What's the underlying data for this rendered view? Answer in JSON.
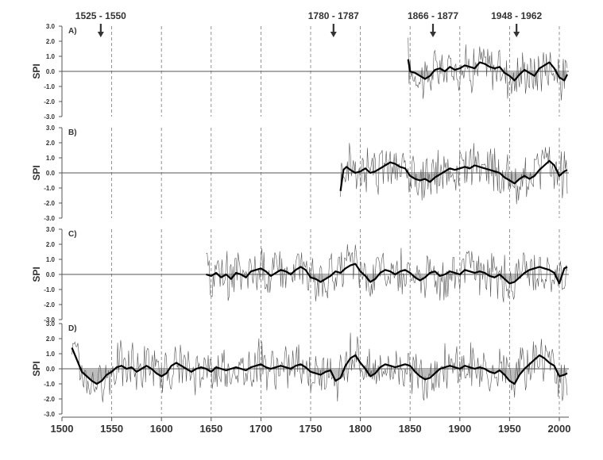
{
  "chart_data": {
    "type": "line",
    "x_axis": {
      "range": [
        1500,
        2010
      ],
      "ticks": [
        1500,
        1550,
        1600,
        1650,
        1700,
        1750,
        1800,
        1850,
        1900,
        1950,
        2000
      ]
    },
    "y_axis": {
      "label": "SPI",
      "range": [
        -3.0,
        3.0
      ],
      "ticks": [
        "3.0",
        "2.0",
        "1.0",
        "0.0",
        "-1.0",
        "-2.0",
        "-3.0"
      ]
    },
    "gridlines": "vertical dashed at 1550-2000",
    "events": [
      {
        "label": "1525 - 1550",
        "year": 1539
      },
      {
        "label": "1780 - 1787",
        "year": 1773
      },
      {
        "label": "1866 - 1877",
        "year": 1873
      },
      {
        "label": "1948 - 1962",
        "year": 1957
      }
    ],
    "panels": [
      {
        "label": "A)",
        "start": 1848,
        "end": 2008,
        "smoothed": [
          [
            1848,
            0.8
          ],
          [
            1850,
            0.0
          ],
          [
            1855,
            -0.1
          ],
          [
            1860,
            -0.3
          ],
          [
            1865,
            -0.5
          ],
          [
            1870,
            -0.3
          ],
          [
            1875,
            0.1
          ],
          [
            1880,
            0.2
          ],
          [
            1885,
            0.0
          ],
          [
            1890,
            0.3
          ],
          [
            1895,
            0.1
          ],
          [
            1900,
            0.2
          ],
          [
            1905,
            0.4
          ],
          [
            1910,
            0.3
          ],
          [
            1915,
            0.2
          ],
          [
            1920,
            0.6
          ],
          [
            1925,
            0.5
          ],
          [
            1930,
            0.3
          ],
          [
            1935,
            0.2
          ],
          [
            1940,
            0.3
          ],
          [
            1945,
            -0.1
          ],
          [
            1950,
            -0.3
          ],
          [
            1955,
            -0.6
          ],
          [
            1960,
            -0.2
          ],
          [
            1965,
            0.1
          ],
          [
            1970,
            -0.1
          ],
          [
            1975,
            -0.3
          ],
          [
            1980,
            0.2
          ],
          [
            1985,
            0.4
          ],
          [
            1990,
            0.6
          ],
          [
            1995,
            0.2
          ],
          [
            2000,
            -0.4
          ],
          [
            2005,
            -0.6
          ],
          [
            2008,
            -0.2
          ]
        ]
      },
      {
        "label": "B)",
        "start": 1780,
        "end": 2008,
        "smoothed": [
          [
            1780,
            -1.2
          ],
          [
            1783,
            0.2
          ],
          [
            1786,
            0.4
          ],
          [
            1790,
            0.2
          ],
          [
            1795,
            0.0
          ],
          [
            1800,
            0.1
          ],
          [
            1805,
            0.3
          ],
          [
            1810,
            0.0
          ],
          [
            1815,
            0.1
          ],
          [
            1820,
            0.3
          ],
          [
            1825,
            0.5
          ],
          [
            1830,
            0.7
          ],
          [
            1835,
            0.6
          ],
          [
            1840,
            0.4
          ],
          [
            1845,
            0.3
          ],
          [
            1850,
            -0.2
          ],
          [
            1855,
            -0.4
          ],
          [
            1860,
            -0.5
          ],
          [
            1865,
            -0.4
          ],
          [
            1870,
            -0.6
          ],
          [
            1875,
            -0.3
          ],
          [
            1880,
            -0.1
          ],
          [
            1885,
            0.1
          ],
          [
            1890,
            0.3
          ],
          [
            1895,
            0.2
          ],
          [
            1900,
            0.3
          ],
          [
            1905,
            0.4
          ],
          [
            1910,
            0.3
          ],
          [
            1915,
            0.5
          ],
          [
            1920,
            0.4
          ],
          [
            1925,
            0.3
          ],
          [
            1930,
            0.2
          ],
          [
            1935,
            0.1
          ],
          [
            1940,
            0.0
          ],
          [
            1945,
            -0.3
          ],
          [
            1950,
            -0.5
          ],
          [
            1955,
            -0.7
          ],
          [
            1960,
            -0.4
          ],
          [
            1965,
            -0.2
          ],
          [
            1970,
            -0.4
          ],
          [
            1975,
            -0.2
          ],
          [
            1980,
            0.2
          ],
          [
            1985,
            0.5
          ],
          [
            1990,
            0.8
          ],
          [
            1995,
            0.5
          ],
          [
            2000,
            -0.2
          ],
          [
            2005,
            0.1
          ],
          [
            2008,
            0.2
          ]
        ]
      },
      {
        "label": "C)",
        "start": 1645,
        "end": 2008,
        "smoothed": [
          [
            1645,
            0.0
          ],
          [
            1650,
            -0.1
          ],
          [
            1655,
            0.1
          ],
          [
            1660,
            -0.2
          ],
          [
            1665,
            0.0
          ],
          [
            1670,
            -0.3
          ],
          [
            1675,
            0.1
          ],
          [
            1680,
            0.0
          ],
          [
            1685,
            -0.2
          ],
          [
            1690,
            0.2
          ],
          [
            1695,
            0.3
          ],
          [
            1700,
            0.4
          ],
          [
            1705,
            0.2
          ],
          [
            1710,
            -0.1
          ],
          [
            1715,
            0.1
          ],
          [
            1720,
            0.3
          ],
          [
            1725,
            0.2
          ],
          [
            1730,
            0.0
          ],
          [
            1735,
            0.3
          ],
          [
            1740,
            0.5
          ],
          [
            1745,
            0.3
          ],
          [
            1750,
            -0.2
          ],
          [
            1755,
            -0.3
          ],
          [
            1760,
            -0.5
          ],
          [
            1765,
            -0.3
          ],
          [
            1770,
            -0.1
          ],
          [
            1775,
            0.2
          ],
          [
            1780,
            0.1
          ],
          [
            1785,
            0.4
          ],
          [
            1790,
            0.6
          ],
          [
            1795,
            0.7
          ],
          [
            1800,
            0.2
          ],
          [
            1805,
            -0.1
          ],
          [
            1810,
            -0.5
          ],
          [
            1815,
            -0.3
          ],
          [
            1820,
            0.1
          ],
          [
            1825,
            0.3
          ],
          [
            1830,
            0.2
          ],
          [
            1835,
            0.0
          ],
          [
            1840,
            0.2
          ],
          [
            1845,
            0.3
          ],
          [
            1850,
            0.1
          ],
          [
            1855,
            -0.2
          ],
          [
            1860,
            -0.4
          ],
          [
            1865,
            -0.2
          ],
          [
            1870,
            0.1
          ],
          [
            1875,
            0.2
          ],
          [
            1880,
            -0.1
          ],
          [
            1885,
            0.0
          ],
          [
            1890,
            0.2
          ],
          [
            1895,
            0.1
          ],
          [
            1900,
            0.0
          ],
          [
            1905,
            0.3
          ],
          [
            1910,
            0.2
          ],
          [
            1915,
            0.1
          ],
          [
            1920,
            0.2
          ],
          [
            1925,
            0.1
          ],
          [
            1930,
            -0.1
          ],
          [
            1935,
            -0.2
          ],
          [
            1940,
            0.0
          ],
          [
            1945,
            -0.3
          ],
          [
            1950,
            -0.6
          ],
          [
            1955,
            -0.5
          ],
          [
            1960,
            -0.2
          ],
          [
            1965,
            0.1
          ],
          [
            1970,
            0.3
          ],
          [
            1975,
            0.4
          ],
          [
            1980,
            0.5
          ],
          [
            1985,
            0.4
          ],
          [
            1990,
            0.3
          ],
          [
            1995,
            0.1
          ],
          [
            2000,
            -0.6
          ],
          [
            2005,
            0.4
          ],
          [
            2008,
            0.5
          ]
        ]
      },
      {
        "label": "D)",
        "start": 1510,
        "end": 2008,
        "smoothed": [
          [
            1510,
            1.4
          ],
          [
            1515,
            0.6
          ],
          [
            1520,
            -0.2
          ],
          [
            1525,
            -0.5
          ],
          [
            1530,
            -0.8
          ],
          [
            1535,
            -1.0
          ],
          [
            1540,
            -0.8
          ],
          [
            1545,
            -0.4
          ],
          [
            1550,
            -0.2
          ],
          [
            1555,
            0.1
          ],
          [
            1560,
            0.2
          ],
          [
            1565,
            0.0
          ],
          [
            1570,
            0.1
          ],
          [
            1575,
            -0.2
          ],
          [
            1580,
            0.0
          ],
          [
            1585,
            0.2
          ],
          [
            1590,
            0.0
          ],
          [
            1595,
            -0.3
          ],
          [
            1600,
            -0.5
          ],
          [
            1605,
            -0.3
          ],
          [
            1610,
            0.2
          ],
          [
            1615,
            0.4
          ],
          [
            1620,
            0.2
          ],
          [
            1625,
            0.0
          ],
          [
            1630,
            -0.2
          ],
          [
            1635,
            0.0
          ],
          [
            1640,
            0.1
          ],
          [
            1645,
            0.0
          ],
          [
            1650,
            -0.2
          ],
          [
            1655,
            0.1
          ],
          [
            1660,
            0.0
          ],
          [
            1665,
            -0.1
          ],
          [
            1670,
            0.0
          ],
          [
            1675,
            0.1
          ],
          [
            1680,
            0.0
          ],
          [
            1685,
            -0.1
          ],
          [
            1690,
            0.1
          ],
          [
            1695,
            0.2
          ],
          [
            1700,
            0.3
          ],
          [
            1705,
            0.1
          ],
          [
            1710,
            0.0
          ],
          [
            1715,
            0.1
          ],
          [
            1720,
            0.2
          ],
          [
            1725,
            0.1
          ],
          [
            1730,
            0.0
          ],
          [
            1735,
            0.2
          ],
          [
            1740,
            0.3
          ],
          [
            1745,
            0.1
          ],
          [
            1750,
            -0.2
          ],
          [
            1755,
            -0.3
          ],
          [
            1760,
            -0.4
          ],
          [
            1765,
            -0.2
          ],
          [
            1770,
            -0.1
          ],
          [
            1775,
            -0.8
          ],
          [
            1780,
            -0.6
          ],
          [
            1785,
            0.2
          ],
          [
            1790,
            0.7
          ],
          [
            1795,
            0.9
          ],
          [
            1800,
            0.4
          ],
          [
            1805,
            0.0
          ],
          [
            1810,
            -0.5
          ],
          [
            1815,
            -0.3
          ],
          [
            1820,
            0.1
          ],
          [
            1825,
            0.3
          ],
          [
            1830,
            0.2
          ],
          [
            1835,
            0.1
          ],
          [
            1840,
            0.2
          ],
          [
            1845,
            0.3
          ],
          [
            1850,
            0.2
          ],
          [
            1855,
            -0.2
          ],
          [
            1860,
            -0.5
          ],
          [
            1865,
            -0.7
          ],
          [
            1870,
            -0.6
          ],
          [
            1875,
            -0.3
          ],
          [
            1880,
            0.0
          ],
          [
            1885,
            0.1
          ],
          [
            1890,
            0.2
          ],
          [
            1895,
            0.1
          ],
          [
            1900,
            0.0
          ],
          [
            1905,
            0.2
          ],
          [
            1910,
            0.1
          ],
          [
            1915,
            0.0
          ],
          [
            1920,
            0.1
          ],
          [
            1925,
            0.0
          ],
          [
            1930,
            -0.2
          ],
          [
            1935,
            -0.3
          ],
          [
            1940,
            -0.1
          ],
          [
            1945,
            -0.4
          ],
          [
            1950,
            -0.8
          ],
          [
            1955,
            -1.0
          ],
          [
            1960,
            -0.4
          ],
          [
            1965,
            0.0
          ],
          [
            1970,
            0.3
          ],
          [
            1975,
            0.6
          ],
          [
            1980,
            0.9
          ],
          [
            1985,
            0.7
          ],
          [
            1990,
            0.4
          ],
          [
            1995,
            0.2
          ],
          [
            2000,
            -0.5
          ],
          [
            2005,
            -0.4
          ],
          [
            2008,
            -0.3
          ]
        ]
      }
    ]
  }
}
